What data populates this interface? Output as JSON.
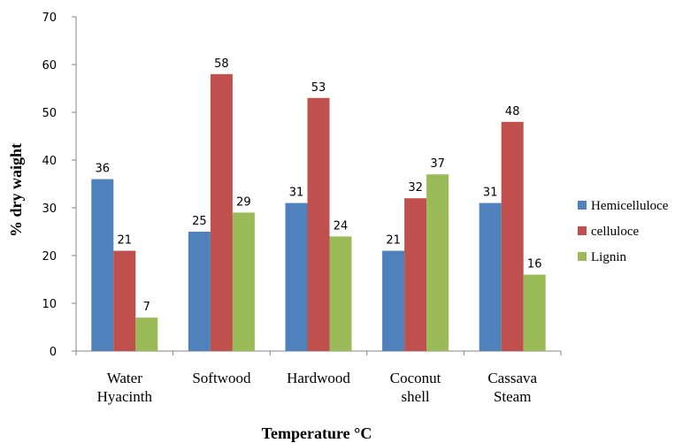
{
  "chart_data": {
    "type": "bar",
    "categories": [
      [
        "Water",
        "Hyacinth"
      ],
      [
        "Softwood"
      ],
      [
        "Hardwood"
      ],
      [
        "Coconut",
        "shell"
      ],
      [
        "Cassava",
        "Steam"
      ]
    ],
    "series": [
      {
        "name": "Hemicelluloce",
        "color": "#4F81BD",
        "values": [
          36,
          25,
          31,
          21,
          31
        ]
      },
      {
        "name": "celluloce",
        "color": "#C0504D",
        "values": [
          21,
          58,
          53,
          32,
          48
        ]
      },
      {
        "name": "Lignin",
        "color": "#9BBB59",
        "values": [
          7,
          29,
          24,
          37,
          16
        ]
      }
    ],
    "xlabel": "Temperature °C",
    "ylabel": "% dry waight",
    "ylim": [
      0,
      70
    ],
    "yticks": [
      0,
      10,
      20,
      30,
      40,
      50,
      60,
      70
    ],
    "data_labels": true,
    "grid": false,
    "legend_position": "right"
  }
}
